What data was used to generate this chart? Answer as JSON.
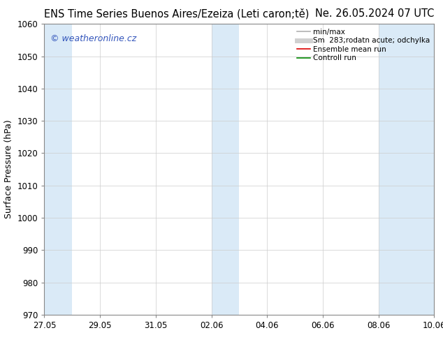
{
  "title_left": "ENS Time Series Buenos Aires/Ezeiza (Leti caron;tě)",
  "title_right": "Ne. 26.05.2024 07 UTC",
  "ylabel": "Surface Pressure (hPa)",
  "ylim": [
    970,
    1060
  ],
  "yticks": [
    970,
    980,
    990,
    1000,
    1010,
    1020,
    1030,
    1040,
    1050,
    1060
  ],
  "x_tick_labels": [
    "27.05",
    "29.05",
    "31.05",
    "02.06",
    "04.06",
    "06.06",
    "08.06",
    "10.06"
  ],
  "x_tick_positions": [
    0,
    2,
    4,
    6,
    8,
    10,
    12,
    14
  ],
  "x_total": 14,
  "band_starts": [
    0,
    6,
    12
  ],
  "band_ends": [
    1,
    7,
    14
  ],
  "band_color": "#daeaf7",
  "background_color": "#ffffff",
  "watermark_text": "© weatheronline.cz",
  "watermark_color": "#3355bb",
  "legend_items": [
    {
      "label": "min/max",
      "color": "#b0b0b0",
      "lw": 1.2,
      "style": "-"
    },
    {
      "label": "Sm  283;rodatn acute; odchylka",
      "color": "#d0d0d0",
      "lw": 5,
      "style": "-"
    },
    {
      "label": "Ensemble mean run",
      "color": "#dd0000",
      "lw": 1.2,
      "style": "-"
    },
    {
      "label": "Controll run",
      "color": "#008800",
      "lw": 1.2,
      "style": "-"
    }
  ],
  "title_fontsize": 10.5,
  "ylabel_fontsize": 9,
  "tick_fontsize": 8.5,
  "watermark_fontsize": 9,
  "legend_fontsize": 7.5
}
